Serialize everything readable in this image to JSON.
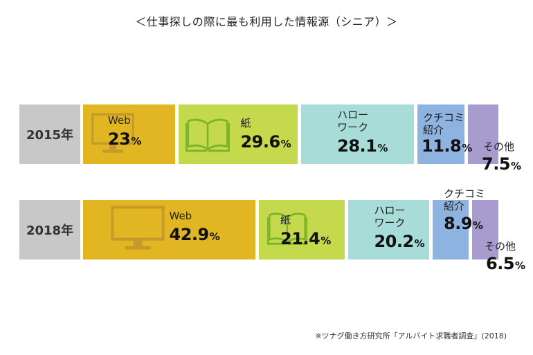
{
  "title": "＜仕事探しの際に最も利用した情報源（シニア）＞",
  "source": "※ツナグ働き方研究所「アルバイト求職者調査」(2018)",
  "chart_data": {
    "type": "bar",
    "stacked": true,
    "orientation": "horizontal",
    "categories": [
      "2015年",
      "2018年"
    ],
    "series": [
      {
        "name": "Web",
        "label_lines": [
          "Web"
        ],
        "values": [
          23,
          42.9
        ],
        "color": "#e2b623"
      },
      {
        "name": "紙",
        "label_lines": [
          "紙"
        ],
        "values": [
          29.6,
          21.4
        ],
        "color": "#c5d94d"
      },
      {
        "name": "ハローワーク",
        "label_lines": [
          "ハロー",
          "ワーク"
        ],
        "values": [
          28.1,
          20.2
        ],
        "color": "#a8dcd8"
      },
      {
        "name": "クチコミ紹介",
        "label_lines": [
          "クチコミ",
          "紹介"
        ],
        "values": [
          11.8,
          8.9
        ],
        "color": "#8fb3e0"
      },
      {
        "name": "その他",
        "label_lines": [
          "その他"
        ],
        "values": [
          7.5,
          6.5
        ],
        "color": "#a89ccf"
      }
    ],
    "value_labels": [
      [
        "23",
        "29.6",
        "28.1",
        "11.8",
        "7.5"
      ],
      [
        "42.9",
        "21.4",
        "20.2",
        "8.9",
        "6.5"
      ]
    ],
    "unit": "%",
    "icons": {
      "Web": "monitor-icon",
      "紙": "open-book-icon"
    }
  }
}
